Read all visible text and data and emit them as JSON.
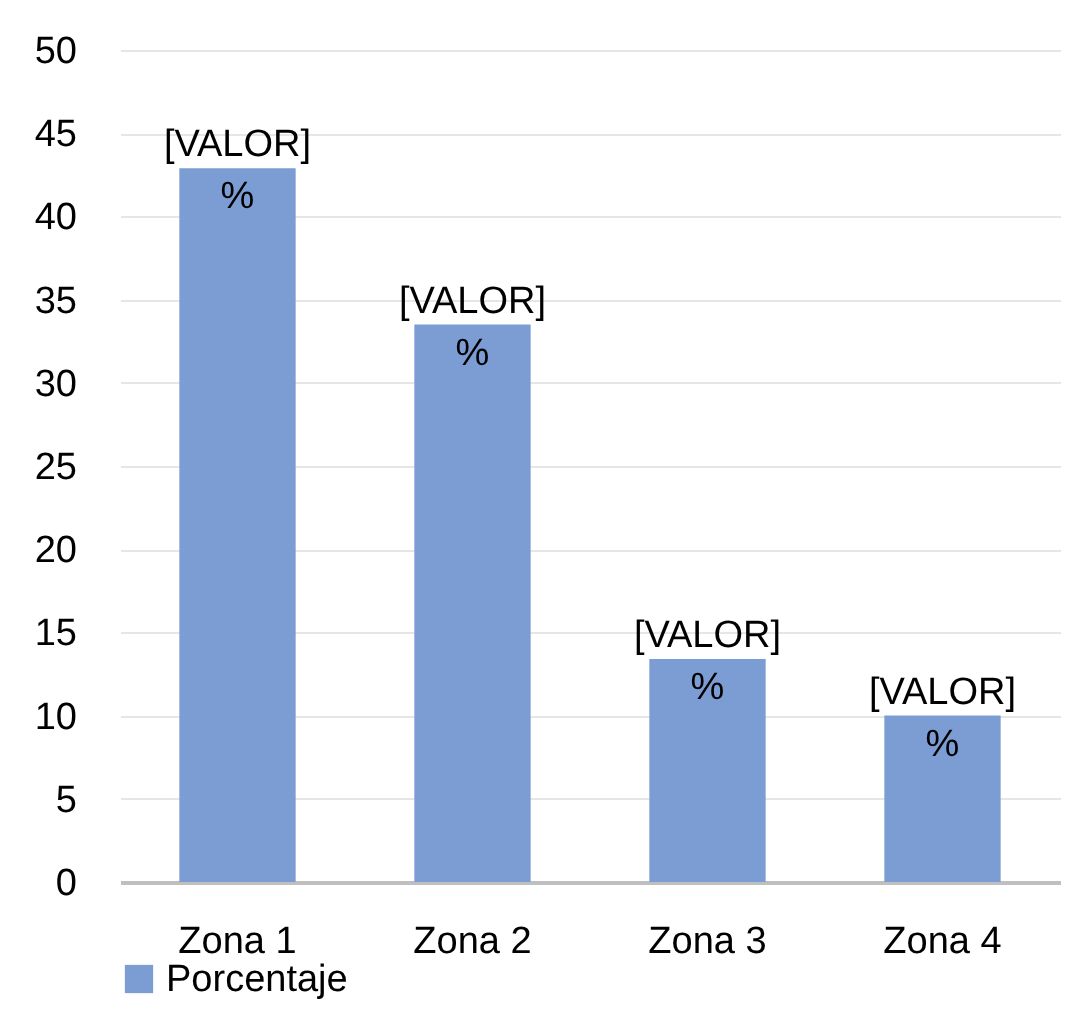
{
  "chart_data": {
    "type": "bar",
    "categories": [
      "Zona 1",
      "Zona 2",
      "Zona 3",
      "Zona 4"
    ],
    "series": [
      {
        "name": "Porcentaje",
        "color": "#7b9dd4",
        "values": [
          42.9,
          33.5,
          13.4,
          10.0
        ],
        "value_labels": [
          "[VALOR] %",
          "[VALOR] %",
          "[VALOR] %",
          "[VALOR] %"
        ]
      }
    ],
    "ylim": [
      0,
      50
    ],
    "yticks": [
      0,
      5,
      10,
      15,
      20,
      25,
      30,
      35,
      40,
      45,
      50
    ],
    "grid": "y",
    "legend": "bottom"
  }
}
